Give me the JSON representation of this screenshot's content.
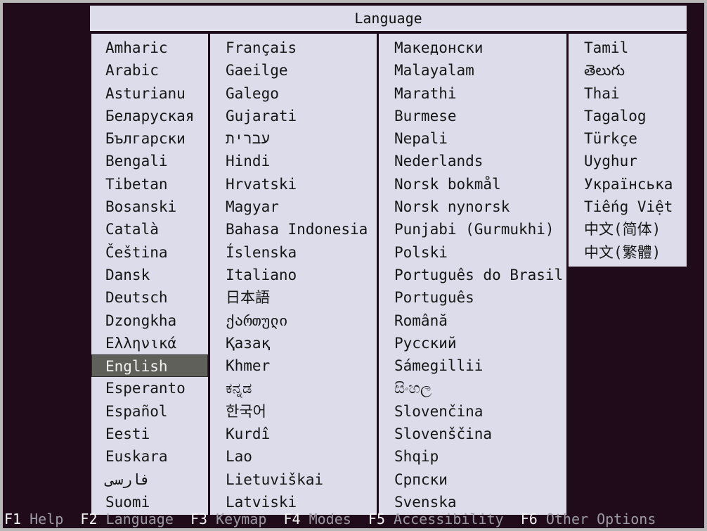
{
  "title": "Language",
  "columns": [
    [
      "Amharic",
      "Arabic",
      "Asturianu",
      "Беларуская",
      "Български",
      "Bengali",
      "Tibetan",
      "Bosanski",
      "Català",
      "Čeština",
      "Dansk",
      "Deutsch",
      "Dzongkha",
      "Ελληνικά",
      "English",
      "Esperanto",
      "Español",
      "Eesti",
      "Euskara",
      "فارسی",
      "Suomi"
    ],
    [
      "Français",
      "Gaeilge",
      "Galego",
      "Gujarati",
      "עברית",
      "Hindi",
      "Hrvatski",
      "Magyar",
      "Bahasa Indonesia",
      "Íslenska",
      "Italiano",
      "日本語",
      "ქართული",
      "Қазақ",
      "Khmer",
      "ಕನ್ನಡ",
      "한국어",
      "Kurdî",
      "Lao",
      "Lietuviškai",
      "Latviski"
    ],
    [
      "Македонски",
      "Malayalam",
      "Marathi",
      "Burmese",
      "Nepali",
      "Nederlands",
      "Norsk bokmål",
      "Norsk nynorsk",
      "Punjabi (Gurmukhi)",
      "Polski",
      "Português do Brasil",
      "Português",
      "Română",
      "Русский",
      "Sámegillii",
      "සිංහල",
      "Slovenčina",
      "Slovenščina",
      "Shqip",
      "Српски",
      "Svenska"
    ],
    [
      "Tamil",
      "తెలుగు",
      "Thai",
      "Tagalog",
      "Türkçe",
      "Uyghur",
      "Українська",
      "Tiếng Việt",
      "中文(简体)",
      "中文(繁體)"
    ]
  ],
  "selected": "English",
  "footer": [
    {
      "key": "F1",
      "label": "Help"
    },
    {
      "key": "F2",
      "label": "Language"
    },
    {
      "key": "F3",
      "label": "Keymap"
    },
    {
      "key": "F4",
      "label": "Modes"
    },
    {
      "key": "F5",
      "label": "Accessibility"
    },
    {
      "key": "F6",
      "label": "Other Options"
    }
  ],
  "colors": {
    "background": "#200b1b",
    "panel": "#dcdcea",
    "selection": "#5f605a",
    "footer_key": "#f4f4f4",
    "footer_label": "#9c9aa6"
  }
}
